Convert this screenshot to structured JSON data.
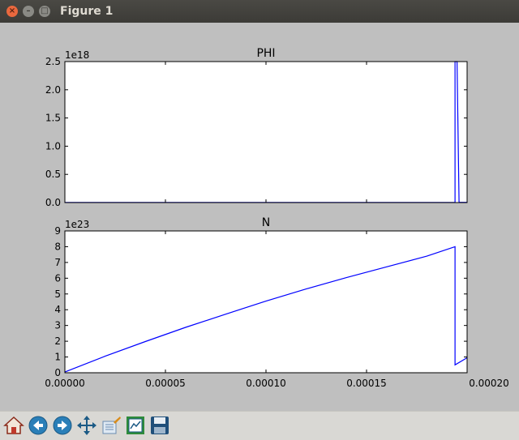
{
  "window": {
    "title": "Figure 1"
  },
  "toolbar": {
    "buttons": [
      {
        "name": "home",
        "icon": "home-icon"
      },
      {
        "name": "back",
        "icon": "back-arrow-icon"
      },
      {
        "name": "forward",
        "icon": "forward-arrow-icon"
      },
      {
        "name": "pan",
        "icon": "pan-move-icon"
      },
      {
        "name": "zoom",
        "icon": "zoom-rect-icon"
      },
      {
        "name": "subplots",
        "icon": "subplots-config-icon"
      },
      {
        "name": "save",
        "icon": "floppy-save-icon"
      }
    ]
  },
  "colors": {
    "line": "#0000ff",
    "figure_bg": "#bfbfbf",
    "axes_bg": "#ffffff"
  },
  "chart_data": [
    {
      "type": "line",
      "title": "PHI",
      "offset_label": "1e18",
      "xlim": [
        0,
        0.0002
      ],
      "ylim": [
        0,
        2.5
      ],
      "yticks": [
        0.0,
        0.5,
        1.0,
        1.5,
        2.0,
        2.5
      ],
      "ytick_labels": [
        "0.0",
        "0.5",
        "1.0",
        "1.5",
        "2.0",
        "2.5"
      ],
      "xtick_labels_shown": false,
      "series": [
        {
          "x": [
            0,
            0.000193,
            0.000194,
            0.000194,
            0.000195,
            0.000196,
            0.0002
          ],
          "y": [
            0.002,
            0.002,
            0.002,
            2.5,
            2.5,
            0.004,
            0.004
          ]
        }
      ]
    },
    {
      "type": "line",
      "title": "N",
      "offset_label": "1e23",
      "xlim": [
        0,
        0.0002
      ],
      "ylim": [
        0,
        9
      ],
      "yticks": [
        0,
        1,
        2,
        3,
        4,
        5,
        6,
        7,
        8,
        9
      ],
      "ytick_labels": [
        "0",
        "1",
        "2",
        "3",
        "4",
        "5",
        "6",
        "7",
        "8",
        "9"
      ],
      "xticks": [
        0,
        5e-05,
        0.0001,
        0.00015,
        0.0002
      ],
      "xtick_labels": [
        "0.00000",
        "0.00005",
        "0.00010",
        "0.00015",
        "0.00020"
      ],
      "series": [
        {
          "x": [
            0,
            2e-05,
            4e-05,
            6e-05,
            8e-05,
            0.0001,
            0.00012,
            0.00014,
            0.00016,
            0.00018,
            0.000194,
            0.000194,
            0.0002
          ],
          "y": [
            0.05,
            1.05,
            1.98,
            2.88,
            3.72,
            4.55,
            5.32,
            6.04,
            6.72,
            7.4,
            8.0,
            0.5,
            0.95
          ]
        }
      ]
    }
  ]
}
